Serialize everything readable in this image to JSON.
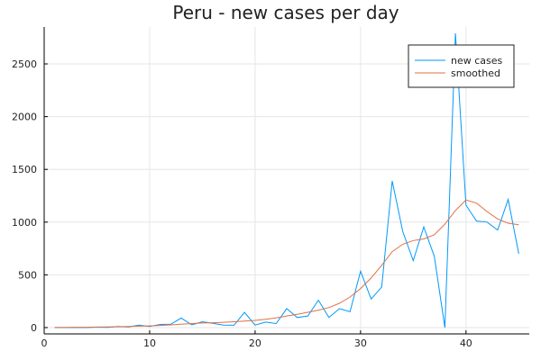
{
  "chart_data": {
    "type": "line",
    "title": "Peru - new cases per day",
    "xlabel": "",
    "ylabel": "",
    "xlim": [
      0,
      46
    ],
    "ylim": [
      -60,
      2850
    ],
    "x_ticks": [
      0,
      10,
      20,
      30,
      40
    ],
    "y_ticks": [
      0,
      500,
      1000,
      1500,
      2000,
      2500
    ],
    "grid": true,
    "legend_position": "top-right",
    "x": [
      1,
      2,
      3,
      4,
      5,
      6,
      7,
      8,
      9,
      10,
      11,
      12,
      13,
      14,
      15,
      16,
      17,
      18,
      19,
      20,
      21,
      22,
      23,
      24,
      25,
      26,
      27,
      28,
      29,
      30,
      31,
      32,
      33,
      34,
      35,
      36,
      37,
      38,
      39,
      40,
      41,
      42,
      43,
      44,
      45
    ],
    "series": [
      {
        "name": "new cases",
        "color": "#009af9",
        "values": [
          0,
          0,
          0,
          0,
          4,
          2,
          11,
          6,
          23,
          10,
          30,
          31,
          90,
          25,
          55,
          40,
          24,
          22,
          145,
          24,
          52,
          38,
          180,
          95,
          110,
          260,
          95,
          180,
          150,
          535,
          270,
          385,
          1390,
          910,
          635,
          955,
          675,
          0,
          2790,
          1160,
          1010,
          1000,
          925,
          1215,
          700
        ]
      },
      {
        "name": "smoothed",
        "color": "#e26f46",
        "values": [
          2,
          2,
          3,
          3,
          5,
          6,
          8,
          10,
          13,
          16,
          20,
          25,
          32,
          38,
          43,
          46,
          50,
          55,
          62,
          68,
          78,
          92,
          110,
          125,
          145,
          165,
          190,
          230,
          290,
          370,
          470,
          590,
          720,
          790,
          825,
          840,
          880,
          980,
          1110,
          1210,
          1180,
          1100,
          1030,
          990,
          975
        ]
      }
    ]
  }
}
